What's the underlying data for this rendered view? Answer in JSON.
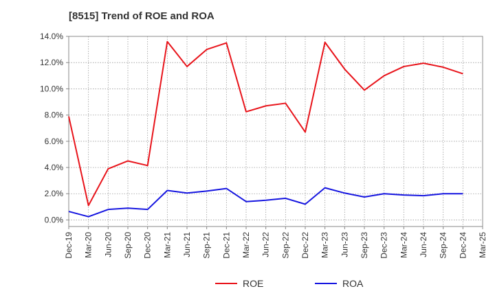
{
  "chart_data": {
    "type": "line",
    "title": "[8515]  Trend of ROE and ROA",
    "xlabel": "",
    "ylabel": "",
    "x": [
      "Dec-19",
      "Mar-20",
      "Jun-20",
      "Sep-20",
      "Dec-20",
      "Mar-21",
      "Jun-21",
      "Sep-21",
      "Dec-21",
      "Mar-22",
      "Jun-22",
      "Sep-22",
      "Dec-22",
      "Mar-23",
      "Jun-23",
      "Sep-23",
      "Dec-23",
      "Mar-24",
      "Jun-24",
      "Sep-24",
      "Dec-24",
      "Mar-25"
    ],
    "ylim": [
      -0.5,
      14.0
    ],
    "yticks": [
      0.0,
      2.0,
      4.0,
      6.0,
      8.0,
      10.0,
      12.0,
      14.0
    ],
    "ytick_labels": [
      "0.0%",
      "2.0%",
      "4.0%",
      "6.0%",
      "8.0%",
      "10.0%",
      "12.0%",
      "14.0%"
    ],
    "grid": true,
    "legend_position": "bottom-center",
    "series": [
      {
        "name": "ROE",
        "color": "#e8131a",
        "values": [
          7.9,
          1.1,
          3.9,
          4.5,
          4.15,
          13.6,
          11.7,
          13.0,
          13.5,
          8.25,
          8.7,
          8.9,
          6.7,
          13.55,
          11.5,
          9.9,
          11.0,
          11.7,
          11.95,
          11.65,
          11.15,
          null
        ]
      },
      {
        "name": "ROA",
        "color": "#1515e0",
        "values": [
          0.65,
          0.25,
          0.8,
          0.9,
          0.8,
          2.25,
          2.05,
          2.2,
          2.4,
          1.4,
          1.5,
          1.65,
          1.2,
          2.45,
          2.05,
          1.75,
          2.0,
          1.9,
          1.85,
          2.0,
          2.0,
          null
        ]
      }
    ]
  }
}
